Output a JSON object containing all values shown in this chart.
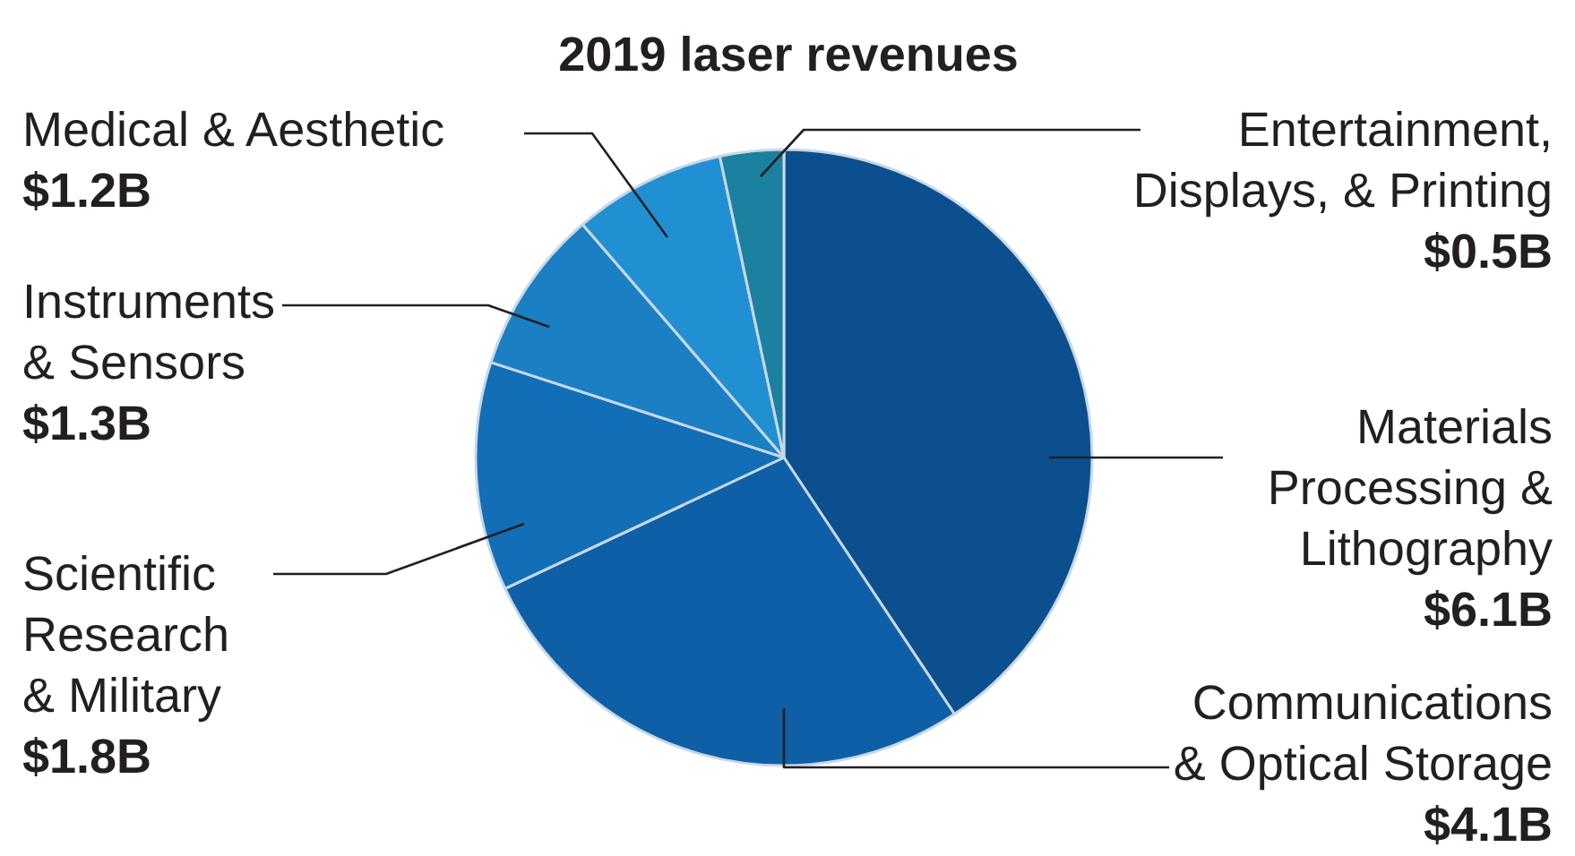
{
  "chart_data": {
    "type": "pie",
    "title": "2019 laser revenues",
    "categories": [
      "Materials\nProcessing &\nLithography",
      "Communications\n& Optical Storage",
      "Scientific\nResearch\n& Military",
      "Instruments\n& Sensors",
      "Medical & Aesthetic",
      "Entertainment,\nDisplays, & Printing"
    ],
    "values": [
      6.1,
      4.1,
      1.8,
      1.3,
      1.2,
      0.5
    ],
    "value_labels": [
      "$6.1B",
      "$4.1B",
      "$1.8B",
      "$1.3B",
      "$1.2B",
      "$0.5B"
    ],
    "colors": [
      "#0b4f8e",
      "#0e5fa6",
      "#126eb6",
      "#1a7fc3",
      "#2190d2",
      "#1c80a0"
    ]
  }
}
